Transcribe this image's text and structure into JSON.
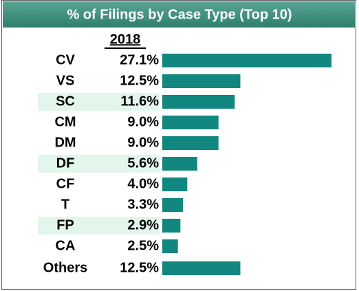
{
  "chart_data": {
    "type": "bar",
    "orientation": "horizontal",
    "title": "% of Filings by Case Type (Top 10)",
    "column_header": "2018",
    "categories": [
      "CV",
      "VS",
      "SC",
      "CM",
      "DM",
      "DF",
      "CF",
      "T",
      "FP",
      "CA",
      "Others"
    ],
    "values": [
      27.1,
      12.5,
      11.6,
      9.0,
      9.0,
      5.6,
      4.0,
      3.3,
      2.9,
      2.5,
      12.5
    ],
    "value_labels": [
      "27.1%",
      "12.5%",
      "11.6%",
      "9.0%",
      "9.0%",
      "5.6%",
      "4.0%",
      "3.3%",
      "2.9%",
      "2.5%",
      "12.5%"
    ],
    "color": "#12877f"
  }
}
